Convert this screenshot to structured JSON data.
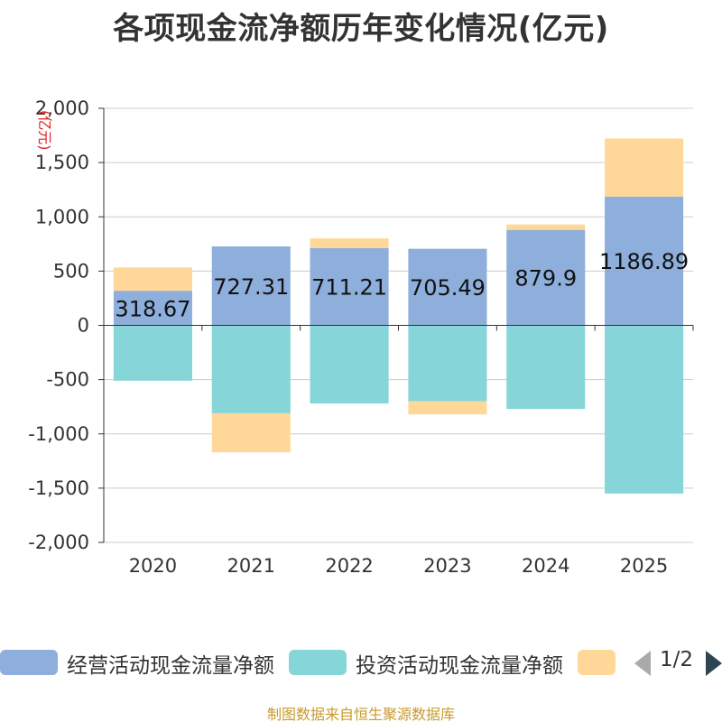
{
  "chart_data": {
    "type": "bar",
    "stacked": true,
    "title": "各项现金流净额历年变化情况(亿元)",
    "ylabel": "(亿元)",
    "xlabel": "",
    "ylim": [
      -2000,
      2000
    ],
    "yticks": [
      2000,
      1500,
      1000,
      500,
      0,
      -500,
      -1000,
      -1500,
      -2000
    ],
    "ytick_labels": [
      "2,000",
      "1,500",
      "1,000",
      "500",
      "0",
      "-500",
      "-1,000",
      "-1,500",
      "-2,000"
    ],
    "categories": [
      "2020",
      "2021",
      "2022",
      "2023",
      "2024",
      "2025"
    ],
    "series": [
      {
        "name": "经营活动现金流量净额",
        "color": "#8eaedb",
        "values": [
          318.67,
          727.31,
          711.21,
          705.49,
          879.9,
          1186.89
        ],
        "labels": [
          "318.67",
          "727.31",
          "711.21",
          "705.49",
          "879.9",
          "1186.89"
        ]
      },
      {
        "name": "投资活动现金流量净额",
        "color": "#86d5d8",
        "values": [
          -510,
          -810,
          -720,
          -700,
          -770,
          -1550
        ]
      },
      {
        "name": "",
        "color": "#ffd899",
        "values": [
          215,
          -360,
          90,
          -120,
          50,
          535
        ]
      }
    ],
    "grid": true,
    "legend_position": "bottom"
  },
  "legend": {
    "pager": "1/2"
  },
  "footer": {
    "source": "制图数据来自恒生聚源数据库"
  }
}
